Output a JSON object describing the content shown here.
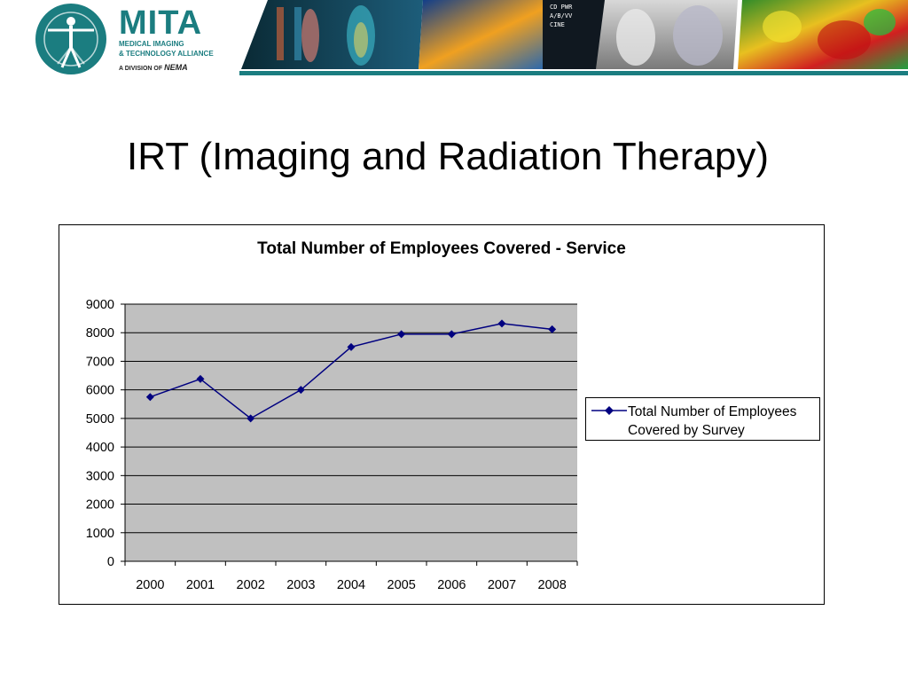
{
  "header": {
    "logo_title": "MITA",
    "logo_sub_line1": "MEDICAL IMAGING",
    "logo_sub_line2": "& TECHNOLOGY ALLIANCE",
    "logo_division_prefix": "A DIVISION OF",
    "logo_division_org": "NEMA"
  },
  "slide": {
    "title": "IRT (Imaging and Radiation Therapy)"
  },
  "colors": {
    "brand": "#1b7d80",
    "plot_area": "#c0c0c0",
    "series": "#000080"
  },
  "chart_data": {
    "type": "line",
    "title": "Total Number of Employees Covered - Service",
    "xlabel": "",
    "ylabel": "",
    "categories": [
      "2000",
      "2001",
      "2002",
      "2003",
      "2004",
      "2005",
      "2006",
      "2007",
      "2008"
    ],
    "series": [
      {
        "name": "Total Number of Employees Covered by Survey",
        "values": [
          5750,
          6380,
          5000,
          6000,
          7500,
          7950,
          7950,
          8320,
          8120
        ],
        "marker": "diamond"
      }
    ],
    "ylim": [
      0,
      9000
    ],
    "yticks": [
      "0",
      "1000",
      "2000",
      "3000",
      "4000",
      "5000",
      "6000",
      "7000",
      "8000",
      "9000"
    ],
    "grid": true,
    "legend_position": "right"
  }
}
